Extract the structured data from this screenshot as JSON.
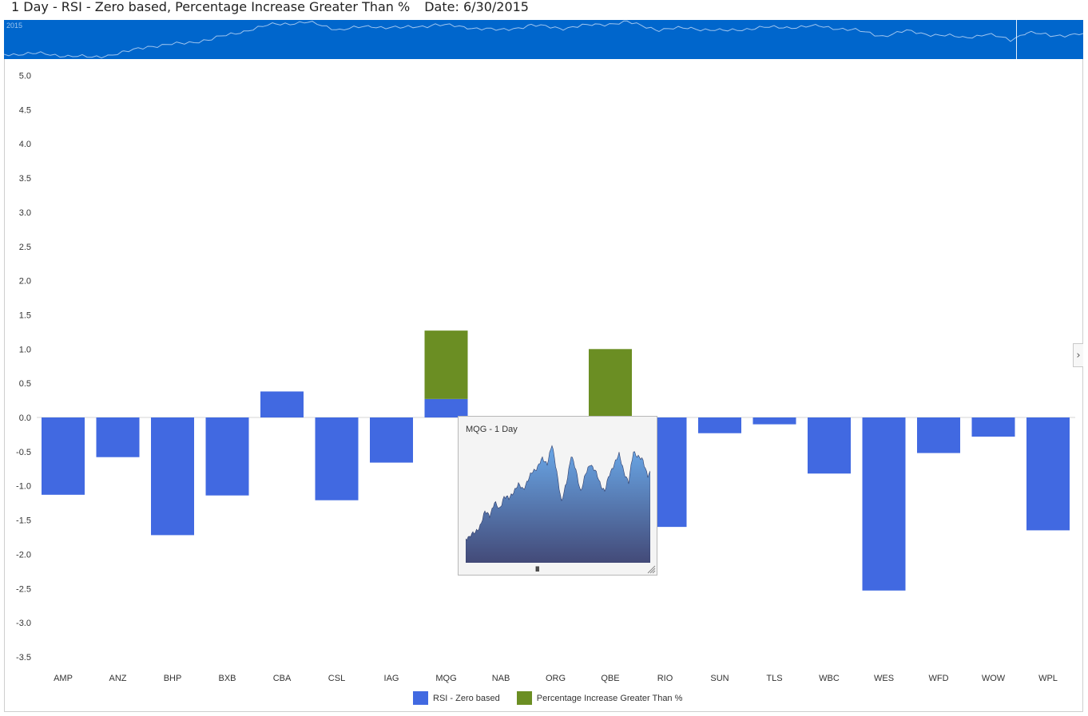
{
  "header": {
    "title": "1 Day - RSI - Zero based, Percentage Increase Greater Than %",
    "date": "Date: 6/30/2015"
  },
  "navigator": {
    "year_label": "2015",
    "background": "#0066cc",
    "line_color": "#9fc5ef"
  },
  "popup": {
    "title": "MQG - 1 Day",
    "grip_label": "III"
  },
  "legend": {
    "items": [
      {
        "label": "RSI - Zero based",
        "color": "#4169e1"
      },
      {
        "label": "Percentage Increase Greater Than %",
        "color": "#6b8e23"
      }
    ]
  },
  "chart_data": {
    "type": "bar",
    "stacked": true,
    "categories": [
      "AMP",
      "ANZ",
      "BHP",
      "BXB",
      "CBA",
      "CSL",
      "IAG",
      "MQG",
      "NAB",
      "ORG",
      "QBE",
      "RIO",
      "SUN",
      "TLS",
      "WBC",
      "WES",
      "WFD",
      "WOW",
      "WPL"
    ],
    "series": [
      {
        "name": "RSI - Zero based",
        "color": "#4169e1",
        "values": [
          -1.13,
          -0.58,
          -1.72,
          -1.14,
          0.38,
          -1.21,
          -0.66,
          0.27,
          null,
          null,
          null,
          -1.6,
          -0.23,
          -0.1,
          -0.82,
          -2.53,
          -0.52,
          -0.28,
          -1.65
        ]
      },
      {
        "name": "Percentage Increase Greater Than %",
        "color": "#6b8e23",
        "values": [
          null,
          null,
          null,
          null,
          null,
          null,
          null,
          1.0,
          null,
          null,
          1.0,
          null,
          null,
          null,
          null,
          null,
          null,
          null,
          null
        ]
      }
    ],
    "yticks": [
      5.0,
      4.5,
      4.0,
      3.5,
      3.0,
      2.5,
      2.0,
      1.5,
      1.0,
      0.5,
      0.0,
      -0.5,
      -1.0,
      -1.5,
      -2.0,
      -2.5,
      -3.0,
      -3.5
    ],
    "ylim": [
      -3.5,
      5.0
    ],
    "grid": false,
    "legend_position": "bottom"
  }
}
